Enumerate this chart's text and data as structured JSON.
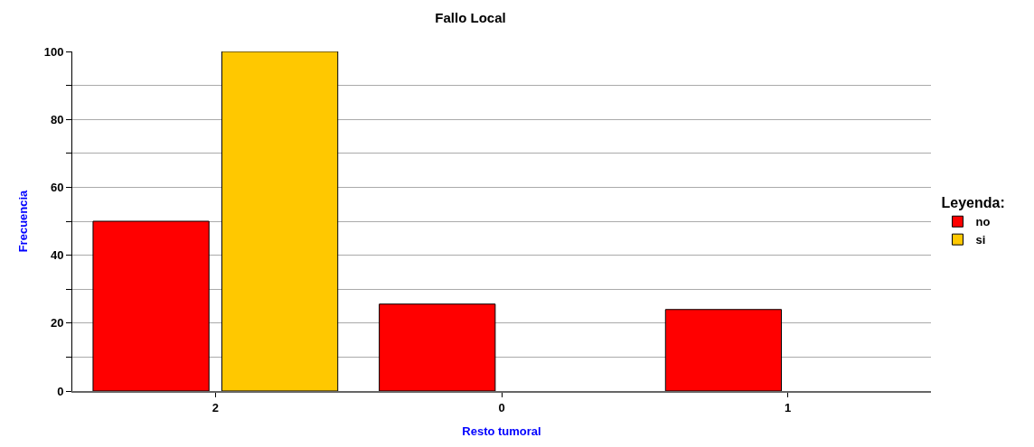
{
  "chart_data": {
    "type": "bar",
    "title": "Fallo Local",
    "xlabel": "Resto tumoral",
    "ylabel": "Frecuencia",
    "legend_title": "Leyenda:",
    "categories": [
      "2",
      "0",
      "1"
    ],
    "series": [
      {
        "name": "no",
        "color": "#ff0000",
        "values": [
          50,
          25.6,
          24.0
        ]
      },
      {
        "name": "si",
        "color": "#ffc800",
        "values": [
          100,
          0,
          0
        ]
      }
    ],
    "ylim": [
      0,
      100
    ],
    "yticks": [
      0,
      {
        "value": 10,
        "label": null
      },
      20,
      {
        "value": 30,
        "label": null
      },
      40,
      {
        "value": 50,
        "label": null
      },
      60,
      {
        "value": 70,
        "label": null
      },
      80,
      {
        "value": 90,
        "label": null
      },
      100
    ],
    "grid": "y",
    "legend": "right"
  }
}
